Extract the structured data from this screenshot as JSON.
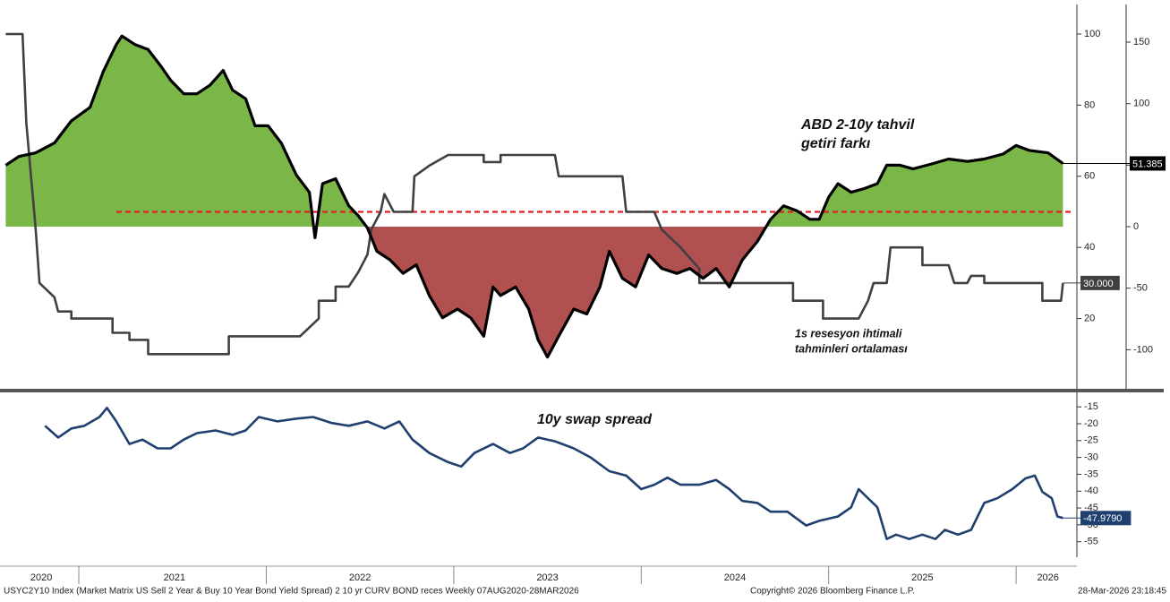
{
  "chart_data": [
    {
      "type": "line",
      "annotations": [
        [
          "ABD 2-10y tahvil",
          "getiri farkı"
        ],
        [
          "1s resesyon ihtimali",
          "tahminleri ortalaması"
        ]
      ],
      "xlim": [
        2020.613,
        2026.31
      ],
      "ylim": [
        0,
        108.3
      ],
      "yticks": [
        20,
        40,
        60,
        80,
        100
      ],
      "y2lim": [
        -132.5,
        180.6
      ],
      "y2ticks": [
        -100,
        -50,
        0,
        50,
        100,
        150
      ],
      "reference_line": {
        "value": 50,
        "color": "#e02020"
      },
      "series": [
        {
          "axis": "y2",
          "color": "#000000",
          "fill_above": "#7ab648",
          "fill_below": "#b05050",
          "x": [
            2020.61,
            2020.68,
            2020.77,
            2020.87,
            2020.96,
            2021.06,
            2021.13,
            2021.2,
            2021.23,
            2021.3,
            2021.37,
            2021.44,
            2021.49,
            2021.56,
            2021.63,
            2021.7,
            2021.77,
            2021.82,
            2021.89,
            2021.94,
            2022.01,
            2022.08,
            2022.16,
            2022.23,
            2022.26,
            2022.3,
            2022.37,
            2022.44,
            2022.49,
            2022.54,
            2022.59,
            2022.66,
            2022.73,
            2022.8,
            2022.87,
            2022.94,
            2023.02,
            2023.09,
            2023.16,
            2023.21,
            2023.25,
            2023.33,
            2023.4,
            2023.45,
            2023.5,
            2023.56,
            2023.64,
            2023.71,
            2023.78,
            2023.83,
            2023.9,
            2023.97,
            2024.04,
            2024.11,
            2024.19,
            2024.26,
            2024.33,
            2024.4,
            2024.47,
            2024.54,
            2024.62,
            2024.69,
            2024.76,
            2024.83,
            2024.9,
            2024.95,
            2025.0,
            2025.05,
            2025.12,
            2025.19,
            2025.26,
            2025.31,
            2025.38,
            2025.45,
            2025.55,
            2025.64,
            2025.74,
            2025.83,
            2025.93,
            2026.0,
            2026.07,
            2026.17,
            2026.25
          ],
          "values": [
            50,
            57,
            60,
            68,
            86,
            97,
            126,
            148,
            155,
            148,
            144,
            130,
            119,
            108,
            108,
            115,
            127,
            111,
            104,
            82,
            82,
            68,
            42,
            28,
            -9,
            35,
            39,
            17,
            9,
            -1,
            -20,
            -27,
            -38,
            -31,
            -56,
            -74,
            -67,
            -74,
            -89,
            -49,
            -56,
            -49,
            -67,
            -92,
            -106,
            -89,
            -67,
            -71,
            -49,
            -20,
            -42,
            -49,
            -23,
            -34,
            -38,
            -34,
            -42,
            -34,
            -49,
            -27,
            -12,
            6,
            17,
            13,
            6,
            6,
            24,
            35,
            28,
            31,
            35,
            50,
            50,
            47,
            51,
            55,
            53,
            55,
            59,
            66,
            62,
            60,
            51.385
          ]
        },
        {
          "axis": "y",
          "color": "#404040",
          "value_label": "30.000",
          "x": [
            2020.61,
            2020.7,
            2020.72,
            2020.77,
            2020.79,
            2020.87,
            2020.89,
            2020.96,
            2020.96,
            2021.18,
            2021.18,
            2021.27,
            2021.27,
            2021.37,
            2021.37,
            2021.8,
            2021.8,
            2022.18,
            2022.28,
            2022.28,
            2022.37,
            2022.37,
            2022.44,
            2022.49,
            2022.54,
            2022.56,
            2022.61,
            2022.63,
            2022.68,
            2022.78,
            2022.79,
            2022.87,
            2022.97,
            2023.16,
            2023.16,
            2023.25,
            2023.25,
            2023.54,
            2023.56,
            2023.9,
            2023.92,
            2024.07,
            2024.11,
            2024.21,
            2024.31,
            2024.31,
            2024.81,
            2024.81,
            2024.97,
            2024.97,
            2025.16,
            2025.21,
            2025.24,
            2025.31,
            2025.33,
            2025.5,
            2025.5,
            2025.64,
            2025.67,
            2025.74,
            2025.76,
            2025.83,
            2025.83,
            2026.14,
            2026.14,
            2026.24,
            2026.25
          ],
          "values": [
            100,
            100,
            75,
            45,
            30,
            26,
            22,
            22,
            20,
            20,
            16,
            16,
            14,
            14,
            10,
            10,
            15,
            15,
            20,
            25,
            25,
            29,
            29,
            33,
            38,
            45,
            50,
            55,
            50,
            50,
            60,
            63,
            66,
            66,
            64,
            64,
            66,
            66,
            60,
            60,
            50,
            50,
            45,
            40,
            34,
            30,
            30,
            25,
            25,
            20,
            20,
            25,
            30,
            30,
            40,
            40,
            35,
            35,
            30,
            30,
            32,
            32,
            30,
            30,
            25,
            25,
            30
          ]
        }
      ]
    },
    {
      "type": "line",
      "annotations": [
        [
          "10y swap spread"
        ]
      ],
      "xlim": [
        2020.613,
        2026.31
      ],
      "ylim": [
        -59.6,
        -10.7
      ],
      "yticks": [
        -15,
        -20,
        -25,
        -30,
        -35,
        -40,
        -45,
        -50,
        -55
      ],
      "xticks": [
        {
          "value": 2020.8,
          "label": "2020"
        },
        {
          "value": 2021.51,
          "label": "2021"
        },
        {
          "value": 2022.5,
          "label": "2022"
        },
        {
          "value": 2023.5,
          "label": "2023"
        },
        {
          "value": 2024.5,
          "label": "2024"
        },
        {
          "value": 2025.5,
          "label": "2025"
        },
        {
          "value": 2026.17,
          "label": "2026"
        }
      ],
      "xtick_marks": [
        2021,
        2022,
        2023,
        2024,
        2025,
        2026
      ],
      "series": [
        {
          "axis": "y",
          "color": "#1f3f6e",
          "value_label": "-47.9790",
          "x": [
            2020.82,
            2020.89,
            2020.96,
            2021.03,
            2021.11,
            2021.15,
            2021.2,
            2021.27,
            2021.34,
            2021.42,
            2021.49,
            2021.56,
            2021.63,
            2021.73,
            2021.82,
            2021.89,
            2021.96,
            2022.06,
            2022.16,
            2022.25,
            2022.35,
            2022.44,
            2022.54,
            2022.63,
            2022.71,
            2022.78,
            2022.87,
            2022.97,
            2023.04,
            2023.11,
            2023.21,
            2023.3,
            2023.37,
            2023.45,
            2023.54,
            2023.64,
            2023.73,
            2023.83,
            2023.92,
            2024.0,
            2024.07,
            2024.14,
            2024.21,
            2024.31,
            2024.4,
            2024.47,
            2024.54,
            2024.62,
            2024.69,
            2024.78,
            2024.88,
            2024.95,
            2025.05,
            2025.12,
            2025.16,
            2025.21,
            2025.26,
            2025.31,
            2025.36,
            2025.43,
            2025.5,
            2025.57,
            2025.62,
            2025.69,
            2025.76,
            2025.83,
            2025.9,
            2025.98,
            2026.05,
            2026.1,
            2026.14,
            2026.19,
            2026.22,
            2026.25
          ],
          "values": [
            -20.6,
            -24.1,
            -21.4,
            -20.6,
            -18.0,
            -15.3,
            -19.3,
            -26.0,
            -24.7,
            -27.3,
            -27.3,
            -24.7,
            -22.8,
            -22.0,
            -23.3,
            -22.0,
            -18.0,
            -19.3,
            -18.5,
            -18.0,
            -19.8,
            -20.6,
            -19.3,
            -21.4,
            -19.3,
            -24.7,
            -28.7,
            -31.4,
            -32.7,
            -28.7,
            -26.0,
            -28.7,
            -27.3,
            -24.1,
            -25.2,
            -27.3,
            -30.0,
            -34.1,
            -35.4,
            -39.4,
            -38.1,
            -36.0,
            -38.1,
            -38.1,
            -36.7,
            -39.4,
            -42.9,
            -43.5,
            -46.1,
            -46.1,
            -50.2,
            -48.8,
            -47.5,
            -44.8,
            -39.4,
            -42.1,
            -44.8,
            -54.2,
            -52.9,
            -54.2,
            -52.9,
            -54.2,
            -51.5,
            -52.9,
            -51.5,
            -43.5,
            -42.1,
            -39.4,
            -36.2,
            -35.4,
            -40.2,
            -42.1,
            -47.5,
            -47.979
          ]
        }
      ]
    }
  ],
  "footer": {
    "source": "USYC2Y10 Index (Market Matrix US Sell 2 Year & Buy 10 Year Bond Yield Spread) 2 10 yr CURV BOND reces Weekly 07AUG2020-28MAR2026",
    "copyright": "Copyright© 2026 Bloomberg Finance L.P.",
    "timestamp": "28-Mar-2026 23:18:45"
  }
}
